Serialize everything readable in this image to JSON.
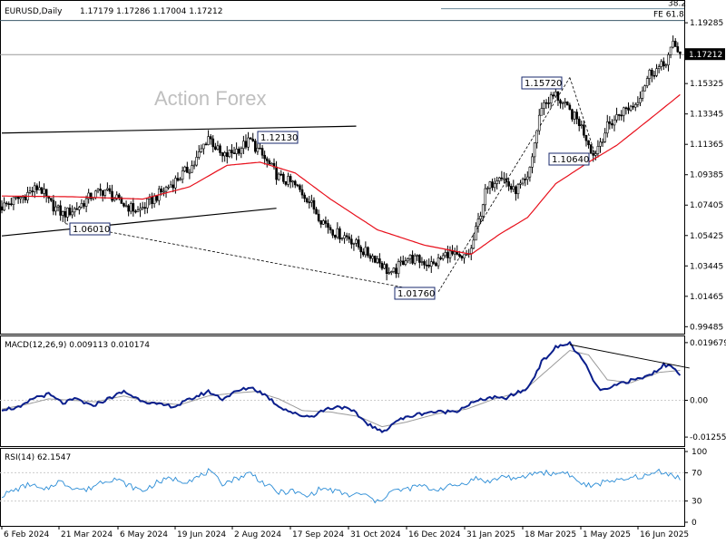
{
  "header": {
    "symbol": "EURUSD,Daily",
    "ohlc": "1.17179 1.17286 1.17004 1.17212"
  },
  "watermark": "Action Forex",
  "colors": {
    "candle": "#000000",
    "ma": "#e8101c",
    "macd": "#0a1e8c",
    "signal": "#9a9a9a",
    "rsi": "#2a8cd6",
    "fib_line": "#6a8a9a",
    "grid": "#cccccc"
  },
  "chart_data": [
    {
      "type": "candlestick",
      "title": "EURUSD,Daily",
      "ylim": [
        0.9915,
        1.2065
      ],
      "y_ticks": [
        "1.19285",
        "1.17212",
        "1.15325",
        "1.13345",
        "1.11365",
        "1.09385",
        "1.07405",
        "1.05425",
        "1.03445",
        "1.01465",
        "0.99485"
      ],
      "current_price": "1.17212",
      "fib_levels": [
        {
          "label": "38.2",
          "value": 1.202
        },
        {
          "label": "FE 61.8",
          "value": 1.1955
        }
      ],
      "price_labels": [
        "1.12130",
        "1.06010",
        "1.01760",
        "1.15720",
        "1.10640"
      ],
      "x_labels": [
        "6 Feb 2024",
        "21 Mar 2024",
        "6 May 2024",
        "19 Jun 2024",
        "2 Aug 2024",
        "17 Sep 2024",
        "31 Oct 2024",
        "16 Dec 2024",
        "31 Jan 2025",
        "18 Mar 2025",
        "1 May 2025",
        "16 Jun 2025"
      ],
      "price_path": [
        [
          0,
          1.073
        ],
        [
          8,
          1.079
        ],
        [
          16,
          1.086
        ],
        [
          20,
          1.076
        ],
        [
          26,
          1.068
        ],
        [
          32,
          1.072
        ],
        [
          38,
          1.08
        ],
        [
          44,
          1.084
        ],
        [
          50,
          1.076
        ],
        [
          58,
          1.07
        ],
        [
          66,
          1.08
        ],
        [
          74,
          1.09
        ],
        [
          82,
          1.101
        ],
        [
          88,
          1.119
        ],
        [
          94,
          1.105
        ],
        [
          100,
          1.11
        ],
        [
          106,
          1.116
        ],
        [
          112,
          1.104
        ],
        [
          118,
          1.092
        ],
        [
          124,
          1.088
        ],
        [
          130,
          1.079
        ],
        [
          136,
          1.065
        ],
        [
          142,
          1.056
        ],
        [
          148,
          1.053
        ],
        [
          154,
          1.044
        ],
        [
          160,
          1.039
        ],
        [
          166,
          1.028
        ],
        [
          172,
          1.04
        ],
        [
          178,
          1.038
        ],
        [
          184,
          1.035
        ],
        [
          190,
          1.043
        ],
        [
          196,
          1.038
        ],
        [
          200,
          1.045
        ],
        [
          206,
          1.082
        ],
        [
          212,
          1.095
        ],
        [
          218,
          1.083
        ],
        [
          224,
          1.09
        ],
        [
          230,
          1.139
        ],
        [
          236,
          1.146
        ],
        [
          240,
          1.138
        ],
        [
          246,
          1.128
        ],
        [
          250,
          1.115
        ],
        [
          252,
          1.1064
        ],
        [
          258,
          1.125
        ],
        [
          264,
          1.135
        ],
        [
          270,
          1.14
        ],
        [
          276,
          1.16
        ],
        [
          282,
          1.165
        ],
        [
          286,
          1.178
        ],
        [
          289,
          1.174
        ]
      ],
      "ma": {
        "name": "",
        "values": [
          [
            0,
            1.08
          ],
          [
            30,
            1.0795
          ],
          [
            60,
            1.078
          ],
          [
            80,
            1.086
          ],
          [
            96,
            1.1
          ],
          [
            110,
            1.102
          ],
          [
            125,
            1.095
          ],
          [
            140,
            1.078
          ],
          [
            160,
            1.058
          ],
          [
            180,
            1.048
          ],
          [
            200,
            1.042
          ],
          [
            212,
            1.055
          ],
          [
            224,
            1.066
          ],
          [
            236,
            1.088
          ],
          [
            250,
            1.102
          ],
          [
            262,
            1.113
          ],
          [
            276,
            1.13
          ],
          [
            289,
            1.146
          ]
        ]
      },
      "trendlines": [
        {
          "x1": 0,
          "y1": 1.121,
          "x2": 151,
          "y2": 1.1255,
          "style": "solid"
        },
        {
          "x1": 0,
          "y1": 1.054,
          "x2": 117,
          "y2": 1.072,
          "style": "solid"
        },
        {
          "x1": 27,
          "y1": 1.062,
          "x2": 181,
          "y2": 1.0176,
          "style": "dashed"
        },
        {
          "x1": 186,
          "y1": 1.0176,
          "x2": 242,
          "y2": 1.1572,
          "style": "dashed"
        },
        {
          "x1": 242,
          "y1": 1.1572,
          "x2": 253,
          "y2": 1.1064,
          "style": "dashed"
        }
      ]
    },
    {
      "type": "line",
      "title": "MACD(12,26,9) 0.009113 0.010174",
      "ylim": [
        -0.015,
        0.0215
      ],
      "y_ticks": [
        "0.019679",
        "0.00",
        "-0.012552"
      ],
      "macd": [
        [
          0,
          -0.003
        ],
        [
          8,
          -0.0025
        ],
        [
          14,
          0.001
        ],
        [
          20,
          0.002
        ],
        [
          26,
          -0.001
        ],
        [
          32,
          0.0005
        ],
        [
          38,
          -0.002
        ],
        [
          44,
          0.0
        ],
        [
          52,
          0.003
        ],
        [
          58,
          0.0005
        ],
        [
          66,
          -0.0015
        ],
        [
          74,
          -0.002
        ],
        [
          82,
          0.001
        ],
        [
          88,
          0.003
        ],
        [
          94,
          0.0005
        ],
        [
          100,
          0.003
        ],
        [
          106,
          0.0045
        ],
        [
          112,
          0.002
        ],
        [
          118,
          -0.002
        ],
        [
          126,
          -0.005
        ],
        [
          132,
          -0.0055
        ],
        [
          138,
          -0.003
        ],
        [
          144,
          -0.002
        ],
        [
          150,
          -0.004
        ],
        [
          156,
          -0.008
        ],
        [
          162,
          -0.011
        ],
        [
          168,
          -0.007
        ],
        [
          176,
          -0.005
        ],
        [
          182,
          -0.004
        ],
        [
          188,
          -0.004
        ],
        [
          194,
          -0.0035
        ],
        [
          200,
          -0.001
        ],
        [
          208,
          0.001
        ],
        [
          214,
          0.0005
        ],
        [
          218,
          0.002
        ],
        [
          224,
          0.004
        ],
        [
          230,
          0.013
        ],
        [
          236,
          0.018
        ],
        [
          242,
          0.0195
        ],
        [
          248,
          0.013
        ],
        [
          254,
          0.004
        ],
        [
          258,
          0.0035
        ],
        [
          264,
          0.006
        ],
        [
          270,
          0.007
        ],
        [
          276,
          0.0085
        ],
        [
          282,
          0.012
        ],
        [
          286,
          0.0115
        ],
        [
          289,
          0.0091
        ]
      ],
      "signal": [
        [
          0,
          -0.003
        ],
        [
          10,
          -0.0015
        ],
        [
          20,
          0.0005
        ],
        [
          30,
          0.0
        ],
        [
          40,
          -0.0005
        ],
        [
          52,
          0.0015
        ],
        [
          62,
          -0.0005
        ],
        [
          76,
          -0.0015
        ],
        [
          88,
          0.0015
        ],
        [
          100,
          0.0025
        ],
        [
          108,
          0.003
        ],
        [
          118,
          0.0005
        ],
        [
          128,
          -0.0035
        ],
        [
          140,
          -0.004
        ],
        [
          152,
          -0.0055
        ],
        [
          162,
          -0.009
        ],
        [
          172,
          -0.0075
        ],
        [
          186,
          -0.0045
        ],
        [
          198,
          -0.003
        ],
        [
          210,
          0.0005
        ],
        [
          222,
          0.003
        ],
        [
          232,
          0.01
        ],
        [
          242,
          0.017
        ],
        [
          250,
          0.0155
        ],
        [
          258,
          0.007
        ],
        [
          268,
          0.006
        ],
        [
          280,
          0.0095
        ],
        [
          289,
          0.0102
        ]
      ],
      "trendline": {
        "x1": 242,
        "y1": 0.019,
        "x2": 293,
        "y2": 0.011
      }
    },
    {
      "type": "line",
      "title": "RSI(14) 62.1547",
      "ylim": [
        0,
        100
      ],
      "y_ticks": [
        "100",
        "70",
        "30",
        "0"
      ],
      "levels": [
        70,
        30
      ],
      "values": [
        [
          0,
          38
        ],
        [
          6,
          46
        ],
        [
          12,
          54
        ],
        [
          18,
          44
        ],
        [
          24,
          58
        ],
        [
          30,
          50
        ],
        [
          36,
          45
        ],
        [
          42,
          57
        ],
        [
          48,
          62
        ],
        [
          54,
          52
        ],
        [
          60,
          44
        ],
        [
          66,
          56
        ],
        [
          72,
          62
        ],
        [
          78,
          58
        ],
        [
          84,
          64
        ],
        [
          88,
          72
        ],
        [
          94,
          55
        ],
        [
          100,
          62
        ],
        [
          106,
          70
        ],
        [
          112,
          54
        ],
        [
          118,
          42
        ],
        [
          124,
          44
        ],
        [
          130,
          36
        ],
        [
          136,
          48
        ],
        [
          142,
          44
        ],
        [
          148,
          38
        ],
        [
          154,
          40
        ],
        [
          160,
          28
        ],
        [
          166,
          44
        ],
        [
          172,
          46
        ],
        [
          178,
          52
        ],
        [
          184,
          46
        ],
        [
          190,
          50
        ],
        [
          196,
          54
        ],
        [
          202,
          62
        ],
        [
          208,
          57
        ],
        [
          214,
          66
        ],
        [
          220,
          60
        ],
        [
          226,
          69
        ],
        [
          230,
          71
        ],
        [
          236,
          68
        ],
        [
          240,
          72
        ],
        [
          246,
          56
        ],
        [
          252,
          50
        ],
        [
          258,
          60
        ],
        [
          264,
          58
        ],
        [
          270,
          64
        ],
        [
          276,
          66
        ],
        [
          280,
          73
        ],
        [
          284,
          69
        ],
        [
          289,
          62
        ]
      ]
    }
  ]
}
